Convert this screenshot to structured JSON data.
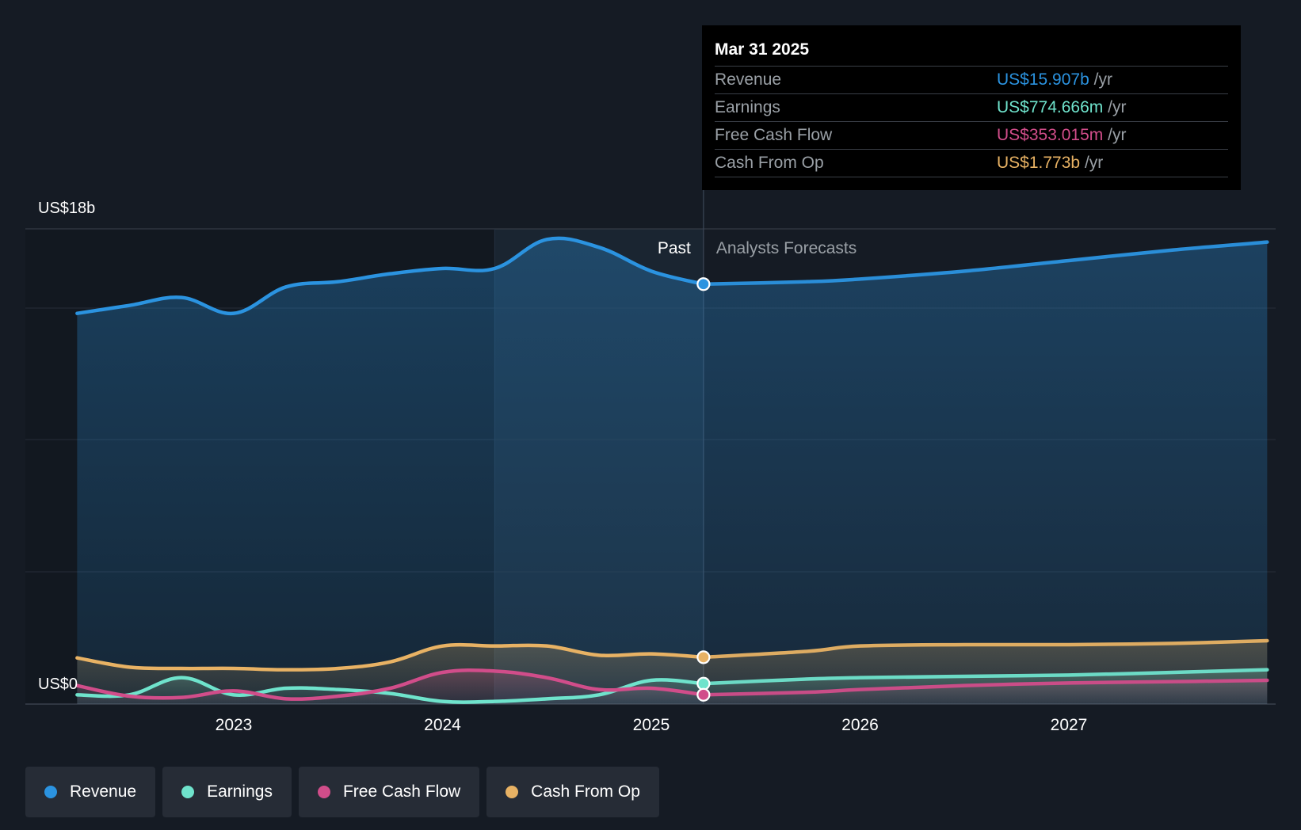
{
  "colors": {
    "revenue": "#2b93e0",
    "earnings": "#6fe3cc",
    "fcf": "#d14d8a",
    "cfo": "#e8b264",
    "background": "#151b24",
    "grid": "#2a313c"
  },
  "tooltip": {
    "date": "Mar 31 2025",
    "rows": [
      {
        "label": "Revenue",
        "value": "US$15.907b",
        "unit": "/yr",
        "color": "#2b93e0"
      },
      {
        "label": "Earnings",
        "value": "US$774.666m",
        "unit": "/yr",
        "color": "#6fe3cc"
      },
      {
        "label": "Free Cash Flow",
        "value": "US$353.015m",
        "unit": "/yr",
        "color": "#d14d8a"
      },
      {
        "label": "Cash From Op",
        "value": "US$1.773b",
        "unit": "/yr",
        "color": "#e8b264"
      }
    ]
  },
  "legend": [
    {
      "label": "Revenue",
      "color": "#2b93e0"
    },
    {
      "label": "Earnings",
      "color": "#6fe3cc"
    },
    {
      "label": "Free Cash Flow",
      "color": "#d14d8a"
    },
    {
      "label": "Cash From Op",
      "color": "#e8b264"
    }
  ],
  "chart_data": {
    "type": "line",
    "title": "",
    "xlabel": "",
    "ylabel": "",
    "y_top_label": "US$18b",
    "y_bottom_label": "US$0",
    "ylim": [
      0,
      18
    ],
    "xlim": [
      2022.2,
      2027.95
    ],
    "x_ticks": [
      2023,
      2024,
      2025,
      2026,
      2027
    ],
    "x_tick_labels": [
      "2023",
      "2024",
      "2025",
      "2026",
      "2027"
    ],
    "grid": true,
    "divider_x": 2025.25,
    "past_label": "Past",
    "forecast_label": "Analysts Forecasts",
    "highlight_band": [
      2024.25,
      2025.25
    ],
    "series": [
      {
        "name": "Revenue",
        "key": "revenue",
        "points": [
          [
            2022.25,
            14.8
          ],
          [
            2022.5,
            15.1
          ],
          [
            2022.75,
            15.4
          ],
          [
            2023.0,
            14.8
          ],
          [
            2023.25,
            15.8
          ],
          [
            2023.5,
            16.0
          ],
          [
            2023.75,
            16.3
          ],
          [
            2024.0,
            16.5
          ],
          [
            2024.25,
            16.5
          ],
          [
            2024.5,
            17.6
          ],
          [
            2024.75,
            17.3
          ],
          [
            2025.0,
            16.4
          ],
          [
            2025.25,
            15.907
          ]
        ],
        "forecast": [
          [
            2025.25,
            15.907
          ],
          [
            2025.75,
            16.0
          ],
          [
            2026.0,
            16.1
          ],
          [
            2026.5,
            16.4
          ],
          [
            2027.0,
            16.8
          ],
          [
            2027.5,
            17.2
          ],
          [
            2027.95,
            17.5
          ]
        ]
      },
      {
        "name": "Earnings",
        "key": "earnings",
        "points": [
          [
            2022.25,
            0.35
          ],
          [
            2022.5,
            0.35
          ],
          [
            2022.75,
            1.0
          ],
          [
            2023.0,
            0.35
          ],
          [
            2023.25,
            0.6
          ],
          [
            2023.5,
            0.55
          ],
          [
            2023.75,
            0.4
          ],
          [
            2024.0,
            0.1
          ],
          [
            2024.25,
            0.1
          ],
          [
            2024.5,
            0.2
          ],
          [
            2024.75,
            0.35
          ],
          [
            2025.0,
            0.9
          ],
          [
            2025.25,
            0.774666
          ]
        ],
        "forecast": [
          [
            2025.25,
            0.774666
          ],
          [
            2025.75,
            0.95
          ],
          [
            2026.0,
            1.0
          ],
          [
            2026.5,
            1.05
          ],
          [
            2027.0,
            1.1
          ],
          [
            2027.5,
            1.2
          ],
          [
            2027.95,
            1.3
          ]
        ]
      },
      {
        "name": "Free Cash Flow",
        "key": "fcf",
        "points": [
          [
            2022.25,
            0.7
          ],
          [
            2022.5,
            0.3
          ],
          [
            2022.75,
            0.25
          ],
          [
            2023.0,
            0.5
          ],
          [
            2023.25,
            0.2
          ],
          [
            2023.5,
            0.3
          ],
          [
            2023.75,
            0.6
          ],
          [
            2024.0,
            1.2
          ],
          [
            2024.25,
            1.25
          ],
          [
            2024.5,
            1.0
          ],
          [
            2024.75,
            0.55
          ],
          [
            2025.0,
            0.6
          ],
          [
            2025.25,
            0.353015
          ]
        ],
        "forecast": [
          [
            2025.25,
            0.353015
          ],
          [
            2025.75,
            0.45
          ],
          [
            2026.0,
            0.55
          ],
          [
            2026.5,
            0.7
          ],
          [
            2027.0,
            0.8
          ],
          [
            2027.5,
            0.85
          ],
          [
            2027.95,
            0.9
          ]
        ]
      },
      {
        "name": "Cash From Op",
        "key": "cfo",
        "points": [
          [
            2022.25,
            1.75
          ],
          [
            2022.5,
            1.4
          ],
          [
            2022.75,
            1.35
          ],
          [
            2023.0,
            1.35
          ],
          [
            2023.25,
            1.3
          ],
          [
            2023.5,
            1.35
          ],
          [
            2023.75,
            1.6
          ],
          [
            2024.0,
            2.2
          ],
          [
            2024.25,
            2.2
          ],
          [
            2024.5,
            2.2
          ],
          [
            2024.75,
            1.85
          ],
          [
            2025.0,
            1.9
          ],
          [
            2025.25,
            1.773
          ]
        ],
        "forecast": [
          [
            2025.25,
            1.773
          ],
          [
            2025.75,
            2.0
          ],
          [
            2026.0,
            2.2
          ],
          [
            2026.5,
            2.25
          ],
          [
            2027.0,
            2.25
          ],
          [
            2027.5,
            2.3
          ],
          [
            2027.95,
            2.4
          ]
        ]
      }
    ]
  }
}
